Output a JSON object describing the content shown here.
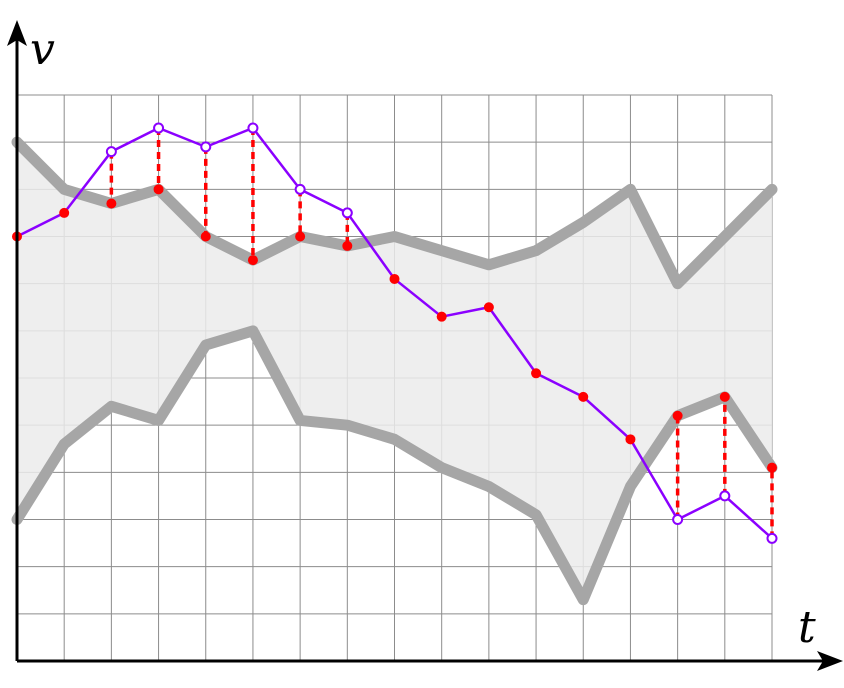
{
  "chart_data": {
    "type": "line",
    "xlabel": "t",
    "ylabel": "v",
    "xlim": [
      0,
      16
    ],
    "ylim": [
      0,
      12
    ],
    "grid": true,
    "x": [
      0,
      1,
      2,
      3,
      4,
      5,
      6,
      7,
      8,
      9,
      10,
      11,
      12,
      13,
      14,
      15,
      16
    ],
    "upper_bound": [
      11.0,
      10.0,
      9.7,
      10.0,
      9.0,
      8.5,
      9.0,
      8.8,
      9.0,
      8.7,
      8.4,
      8.7,
      9.3,
      10.0,
      8.0,
      9.0,
      10.0
    ],
    "lower_bound": [
      3.0,
      4.6,
      5.4,
      5.1,
      6.7,
      7.0,
      5.1,
      5.0,
      4.7,
      4.1,
      3.7,
      3.1,
      1.3,
      3.7,
      5.2,
      5.6,
      4.1
    ],
    "signal": [
      9.0,
      9.5,
      10.8,
      11.3,
      10.9,
      11.3,
      10.0,
      9.5,
      8.1,
      7.3,
      7.5,
      6.1,
      5.6,
      4.7,
      3.0,
      3.5,
      2.6
    ],
    "clamped": [
      9.0,
      9.5,
      9.7,
      10.0,
      9.0,
      8.5,
      9.0,
      8.8,
      8.1,
      7.3,
      7.5,
      6.1,
      5.6,
      4.7,
      5.2,
      5.6,
      4.1
    ],
    "colors": {
      "band_fill": "#ebebeb",
      "bound_stroke": "#a6a6a6",
      "signal": "#8b00ff",
      "clamped": "#ff0000",
      "grid": "#8c8c8c",
      "axis": "#000000"
    }
  }
}
